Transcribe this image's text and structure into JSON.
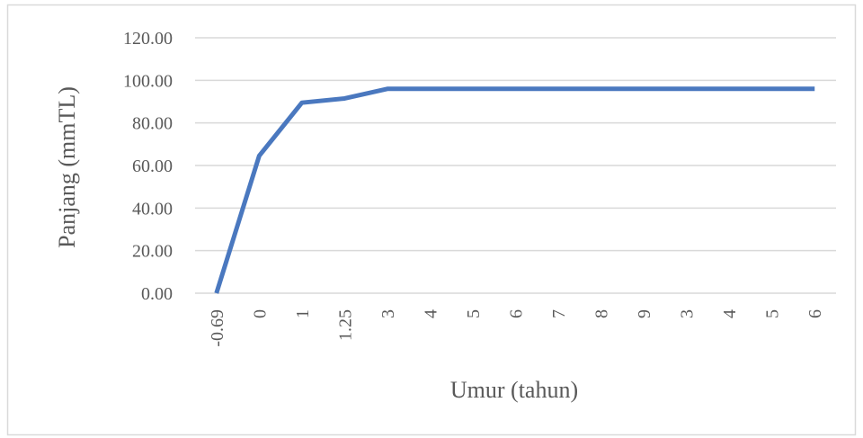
{
  "chart_data": {
    "type": "line",
    "x_label": "Umur (tahun)",
    "y_label": "Panjang  (mmTL)",
    "categories": [
      "-0.69",
      "0",
      "1",
      "1.25",
      "3",
      "4",
      "5",
      "6",
      "7",
      "8",
      "9",
      "3",
      "4",
      "5",
      "6"
    ],
    "series": [
      {
        "name": "Panjang",
        "color": "#4a78bf",
        "values": [
          0,
          64.5,
          89.5,
          91.5,
          96,
          96,
          96,
          96,
          96,
          96,
          96,
          96,
          96,
          96,
          96
        ]
      }
    ],
    "ylim": [
      0,
      120
    ],
    "yticks": [
      {
        "value": 0,
        "label": "0.00"
      },
      {
        "value": 20,
        "label": "20.00"
      },
      {
        "value": 40,
        "label": "40.00"
      },
      {
        "value": 60,
        "label": "60.00"
      },
      {
        "value": 80,
        "label": "80.00"
      },
      {
        "value": 100,
        "label": "100.00"
      },
      {
        "value": 120,
        "label": "120.00"
      }
    ],
    "grid": true
  }
}
